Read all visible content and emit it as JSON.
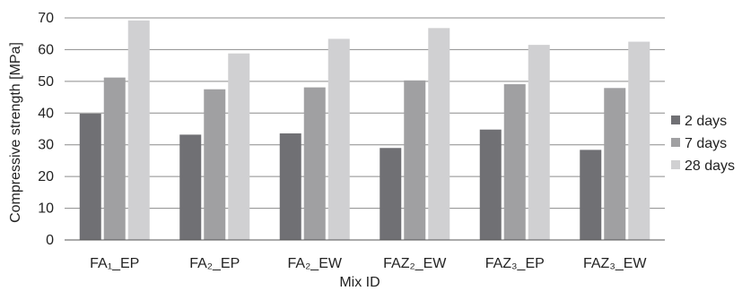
{
  "chart_data": {
    "type": "bar",
    "categories": [
      "FA₁_EP",
      "FA₂_EP",
      "FA₂_EW",
      "FAZ₂_EW",
      "FAZ₃_EP",
      "FAZ₃_EW"
    ],
    "series": [
      {
        "name": "2 days",
        "color": "#707074",
        "values": [
          39.8,
          33.2,
          33.6,
          29.0,
          34.8,
          28.4
        ]
      },
      {
        "name": "7 days",
        "color": "#a0a0a2",
        "values": [
          51.2,
          47.5,
          48.1,
          50.3,
          49.1,
          47.9
        ]
      },
      {
        "name": "28 days",
        "color": "#d0d0d2",
        "values": [
          69.2,
          58.8,
          63.4,
          66.8,
          61.5,
          62.5
        ]
      }
    ],
    "xlabel": "Mix ID",
    "ylabel": "Compressive strength [MPa]",
    "ylim": [
      0,
      70
    ],
    "yticks": [
      "0",
      "10",
      "20",
      "30",
      "40",
      "50",
      "60",
      "70"
    ],
    "grid": true,
    "legend_position": "right"
  }
}
